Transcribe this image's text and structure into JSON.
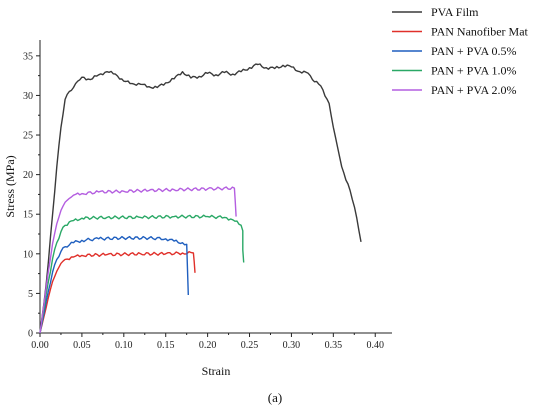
{
  "caption": "(a)",
  "chart_data": {
    "type": "line",
    "title": "",
    "xlabel": "Strain",
    "ylabel": "Stress (MPa)",
    "xlim": [
      0,
      0.42
    ],
    "ylim": [
      0,
      37
    ],
    "xticks": [
      0.0,
      0.05,
      0.1,
      0.15,
      0.2,
      0.25,
      0.3,
      0.35,
      0.4
    ],
    "xtick_labels": [
      "0.00",
      "0.05",
      "0.10",
      "0.15",
      "0.20",
      "0.25",
      "0.30",
      "0.35",
      "0.40"
    ],
    "yticks": [
      0,
      5,
      10,
      15,
      20,
      25,
      30,
      35
    ],
    "ytick_labels": [
      "0",
      "5",
      "10",
      "15",
      "20",
      "25",
      "30",
      "35"
    ],
    "grid": false,
    "legend_position": "top-right-outside",
    "series": [
      {
        "name": "PVA Film",
        "color": "#3a3a3a",
        "points": [
          [
            0,
            0
          ],
          [
            0.005,
            4
          ],
          [
            0.01,
            9
          ],
          [
            0.015,
            15
          ],
          [
            0.02,
            21
          ],
          [
            0.025,
            26
          ],
          [
            0.03,
            29.5
          ],
          [
            0.035,
            30.5
          ],
          [
            0.04,
            31
          ],
          [
            0.045,
            31.8
          ],
          [
            0.05,
            32.3
          ],
          [
            0.06,
            32.0
          ],
          [
            0.07,
            32.6
          ],
          [
            0.08,
            33.0
          ],
          [
            0.09,
            32.7
          ],
          [
            0.1,
            31.8
          ],
          [
            0.11,
            31.5
          ],
          [
            0.12,
            31.4
          ],
          [
            0.13,
            31.1
          ],
          [
            0.14,
            31.0
          ],
          [
            0.15,
            31.6
          ],
          [
            0.16,
            32.1
          ],
          [
            0.17,
            33.0
          ],
          [
            0.18,
            32.2
          ],
          [
            0.19,
            32.4
          ],
          [
            0.2,
            32.8
          ],
          [
            0.21,
            32.6
          ],
          [
            0.22,
            32.9
          ],
          [
            0.23,
            32.7
          ],
          [
            0.24,
            33.0
          ],
          [
            0.25,
            33.5
          ],
          [
            0.26,
            33.9
          ],
          [
            0.27,
            33.5
          ],
          [
            0.28,
            33.4
          ],
          [
            0.29,
            33.8
          ],
          [
            0.3,
            33.6
          ],
          [
            0.31,
            33.0
          ],
          [
            0.32,
            32.8
          ],
          [
            0.325,
            32.0
          ],
          [
            0.335,
            31.2
          ],
          [
            0.345,
            29.0
          ],
          [
            0.35,
            26.0
          ],
          [
            0.355,
            23.5
          ],
          [
            0.36,
            21.0
          ],
          [
            0.37,
            18.0
          ],
          [
            0.378,
            14.5
          ],
          [
            0.383,
            11.5
          ]
        ]
      },
      {
        "name": "PAN Nanofiber Mat",
        "color": "#e0302a",
        "points": [
          [
            0,
            0
          ],
          [
            0.005,
            2.2
          ],
          [
            0.01,
            4.5
          ],
          [
            0.015,
            6.5
          ],
          [
            0.02,
            7.8
          ],
          [
            0.025,
            8.8
          ],
          [
            0.03,
            9.3
          ],
          [
            0.04,
            9.6
          ],
          [
            0.05,
            9.8
          ],
          [
            0.08,
            9.9
          ],
          [
            0.12,
            10.0
          ],
          [
            0.15,
            10.0
          ],
          [
            0.17,
            10.1
          ],
          [
            0.183,
            10.1
          ],
          [
            0.184,
            9.0
          ],
          [
            0.185,
            7.6
          ]
        ]
      },
      {
        "name": "PAN + PVA 0.5%",
        "color": "#1f5fbf",
        "points": [
          [
            0,
            0
          ],
          [
            0.005,
            2.6
          ],
          [
            0.01,
            5.3
          ],
          [
            0.015,
            7.7
          ],
          [
            0.02,
            9.3
          ],
          [
            0.025,
            10.3
          ],
          [
            0.03,
            10.9
          ],
          [
            0.04,
            11.4
          ],
          [
            0.05,
            11.7
          ],
          [
            0.07,
            11.9
          ],
          [
            0.1,
            12.0
          ],
          [
            0.13,
            12.0
          ],
          [
            0.15,
            11.9
          ],
          [
            0.16,
            11.6
          ],
          [
            0.17,
            11.4
          ],
          [
            0.175,
            11.2
          ],
          [
            0.176,
            8.0
          ],
          [
            0.177,
            4.8
          ]
        ]
      },
      {
        "name": "PAN + PVA 1.0%",
        "color": "#2aa866",
        "points": [
          [
            0,
            0
          ],
          [
            0.005,
            3.2
          ],
          [
            0.01,
            6.5
          ],
          [
            0.015,
            9.4
          ],
          [
            0.02,
            11.4
          ],
          [
            0.025,
            12.8
          ],
          [
            0.03,
            13.6
          ],
          [
            0.04,
            14.2
          ],
          [
            0.05,
            14.5
          ],
          [
            0.08,
            14.6
          ],
          [
            0.12,
            14.6
          ],
          [
            0.16,
            14.7
          ],
          [
            0.2,
            14.7
          ],
          [
            0.22,
            14.6
          ],
          [
            0.23,
            14.3
          ],
          [
            0.24,
            13.6
          ],
          [
            0.242,
            12.9
          ],
          [
            0.242,
            10.5
          ],
          [
            0.243,
            8.9
          ]
        ]
      },
      {
        "name": "PAN + PVA 2.0%",
        "color": "#b45ee0",
        "points": [
          [
            0,
            0
          ],
          [
            0.005,
            3.8
          ],
          [
            0.01,
            7.8
          ],
          [
            0.015,
            11.3
          ],
          [
            0.02,
            13.8
          ],
          [
            0.025,
            15.5
          ],
          [
            0.03,
            16.5
          ],
          [
            0.035,
            17.0
          ],
          [
            0.04,
            17.4
          ],
          [
            0.05,
            17.6
          ],
          [
            0.07,
            17.8
          ],
          [
            0.1,
            17.9
          ],
          [
            0.13,
            18.0
          ],
          [
            0.16,
            18.1
          ],
          [
            0.2,
            18.2
          ],
          [
            0.232,
            18.3
          ],
          [
            0.233,
            16.5
          ],
          [
            0.234,
            14.7
          ]
        ]
      }
    ]
  }
}
